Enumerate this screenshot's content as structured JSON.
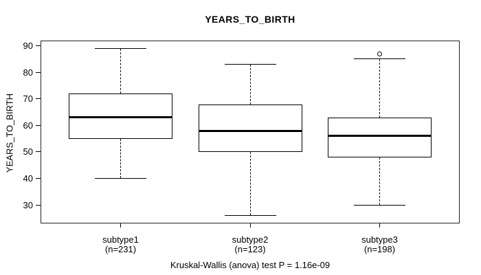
{
  "chart_data": {
    "type": "boxplot",
    "title": "YEARS_TO_BIRTH",
    "ylabel": "YEARS_TO_BIRTH",
    "caption": "Kruskal-Wallis (anova) test P = 1.16e-09",
    "categories": [
      "subtype1",
      "subtype2",
      "subtype3"
    ],
    "category_sublabels": [
      "(n=231)",
      "(n=123)",
      "(n=198)"
    ],
    "y_ticks": [
      30,
      40,
      50,
      60,
      70,
      80,
      90
    ],
    "ylim": [
      23,
      92
    ],
    "grid": false,
    "legend": "none",
    "series": [
      {
        "name": "subtype1",
        "n": 231,
        "whisker_low": 40,
        "q1": 55,
        "median": 63,
        "q3": 72,
        "whisker_high": 89,
        "outliers": []
      },
      {
        "name": "subtype2",
        "n": 123,
        "whisker_low": 26,
        "q1": 50,
        "median": 58,
        "q3": 68,
        "whisker_high": 83,
        "outliers": []
      },
      {
        "name": "subtype3",
        "n": 198,
        "whisker_low": 30,
        "q1": 48,
        "median": 56,
        "q3": 63,
        "whisker_high": 85,
        "outliers": [
          87
        ]
      }
    ],
    "colors": {
      "line": "#000000",
      "background": "#ffffff"
    }
  }
}
